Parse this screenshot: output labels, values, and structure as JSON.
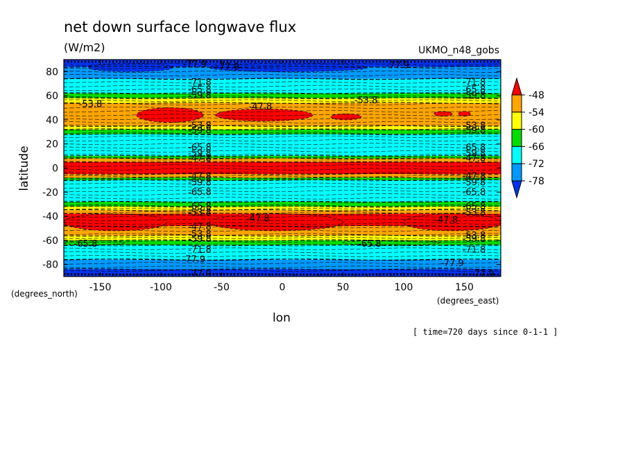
{
  "chart_data": {
    "type": "heatmap",
    "title": "net down surface longwave flux",
    "units": "(W/m2)",
    "model": "UKMO_n48_gobs",
    "xlabel": "lon",
    "ylabel": "latitude",
    "x_units": "(degrees_east)",
    "y_units": "(degrees_north)",
    "time_note": "[ time=720 days since 0-1-1 ]",
    "xlim": [
      -180,
      180
    ],
    "ylim": [
      -90,
      90
    ],
    "x_ticks": [
      -150,
      -100,
      -50,
      0,
      50,
      100,
      150
    ],
    "y_ticks": [
      -80,
      -60,
      -40,
      -20,
      0,
      20,
      40,
      60,
      80
    ],
    "colorbar": {
      "labels": [
        "-48",
        "-54",
        "-60",
        "-66",
        "-72",
        "-78"
      ],
      "levels": [
        -48,
        -54,
        -60,
        -66,
        -72,
        -78
      ],
      "bins": [
        {
          "color": "#ff0000"
        },
        {
          "color": "#ffa500"
        },
        {
          "color": "#ffff00"
        },
        {
          "color": "#00dd00"
        },
        {
          "color": "#00ffff"
        },
        {
          "color": "#0099ff"
        },
        {
          "color": "#0033ee"
        }
      ]
    },
    "latitude_bands": [
      {
        "lat": [
          84,
          90
        ],
        "color": "#0033ee"
      },
      {
        "lat": [
          74,
          84
        ],
        "color": "#0099ff"
      },
      {
        "lat": [
          62,
          74
        ],
        "color": "#00ffff"
      },
      {
        "lat": [
          58,
          62
        ],
        "color": "#00dd00"
      },
      {
        "lat": [
          54,
          58
        ],
        "color": "#ffff00"
      },
      {
        "lat": [
          35,
          54
        ],
        "color": "#ffa500"
      },
      {
        "lat": [
          32,
          35
        ],
        "color": "#ffff00"
      },
      {
        "lat": [
          28,
          32
        ],
        "color": "#00dd00"
      },
      {
        "lat": [
          10,
          28
        ],
        "color": "#00ffff"
      },
      {
        "lat": [
          8,
          10
        ],
        "color": "#00dd00"
      },
      {
        "lat": [
          5,
          8
        ],
        "color": "#ffa500"
      },
      {
        "lat": [
          -5,
          5
        ],
        "color": "#ff0000"
      },
      {
        "lat": [
          -8,
          -5
        ],
        "color": "#ffa500"
      },
      {
        "lat": [
          -10,
          -8
        ],
        "color": "#00dd00"
      },
      {
        "lat": [
          -28,
          -10
        ],
        "color": "#00ffff"
      },
      {
        "lat": [
          -32,
          -28
        ],
        "color": "#00dd00"
      },
      {
        "lat": [
          -35,
          -32
        ],
        "color": "#ffff00"
      },
      {
        "lat": [
          -38,
          -35
        ],
        "color": "#ffa500"
      },
      {
        "lat": [
          -48,
          -38
        ],
        "color": "#ff0000"
      },
      {
        "lat": [
          -56,
          -48
        ],
        "color": "#ffa500"
      },
      {
        "lat": [
          -60,
          -56
        ],
        "color": "#ffff00"
      },
      {
        "lat": [
          -64,
          -60
        ],
        "color": "#00dd00"
      },
      {
        "lat": [
          -76,
          -64
        ],
        "color": "#00ffff"
      },
      {
        "lat": [
          -84,
          -76
        ],
        "color": "#0099ff"
      },
      {
        "lat": [
          -90,
          -84
        ],
        "color": "#0033ee"
      }
    ],
    "blobs": [
      {
        "lon": [
          -120,
          -65
        ],
        "lat": [
          38,
          50
        ],
        "color": "#ff0000"
      },
      {
        "lon": [
          -55,
          25
        ],
        "lat": [
          39,
          49
        ],
        "color": "#ff0000"
      },
      {
        "lon": [
          40,
          65
        ],
        "lat": [
          40,
          45
        ],
        "color": "#ff0000"
      },
      {
        "lon": [
          125,
          140
        ],
        "lat": [
          43,
          47
        ],
        "color": "#ff0000"
      },
      {
        "lon": [
          145,
          155
        ],
        "lat": [
          43,
          47
        ],
        "color": "#ff0000"
      },
      {
        "lon": [
          -60,
          50
        ],
        "lat": [
          -38,
          -52
        ],
        "color": "#ff0000"
      },
      {
        "lon": [
          100,
          180
        ],
        "lat": [
          -38,
          -52
        ],
        "color": "#ff0000"
      },
      {
        "lon": [
          -180,
          -95
        ],
        "lat": [
          -38,
          -52
        ],
        "color": "#ff0000"
      },
      {
        "lon": [
          -160,
          -90
        ],
        "lat": [
          80,
          87
        ],
        "color": "#0033ee"
      },
      {
        "lon": [
          -60,
          70
        ],
        "lat": [
          80,
          87
        ],
        "color": "#0033ee"
      },
      {
        "lon": [
          -180,
          -130
        ],
        "lat": [
          -64,
          -60
        ],
        "color": "#00dd00"
      },
      {
        "lon": [
          50,
          130
        ],
        "lat": [
          -64,
          -60
        ],
        "color": "#00dd00"
      }
    ],
    "contour_labels": [
      {
        "text": "-77.9",
        "lon": -72,
        "lat": 86
      },
      {
        "text": "-77.9",
        "lon": -45,
        "lat": 84
      },
      {
        "text": "-77.9",
        "lon": 95,
        "lat": 85
      },
      {
        "text": "-71.8",
        "lon": -68,
        "lat": 71
      },
      {
        "text": "-71.8",
        "lon": 158,
        "lat": 71
      },
      {
        "text": "-65.8",
        "lon": -68,
        "lat": 65
      },
      {
        "text": "-65.8",
        "lon": 158,
        "lat": 65
      },
      {
        "text": "-59.8",
        "lon": -68,
        "lat": 60
      },
      {
        "text": "-59.8",
        "lon": 158,
        "lat": 60
      },
      {
        "text": "-53.8",
        "lon": -158,
        "lat": 53
      },
      {
        "text": "-53.8",
        "lon": 69,
        "lat": 56
      },
      {
        "text": "-47.8",
        "lon": -18,
        "lat": 51
      },
      {
        "text": "-53.8",
        "lon": -68,
        "lat": 35
      },
      {
        "text": "-53.8",
        "lon": 158,
        "lat": 35
      },
      {
        "text": "-59.8",
        "lon": -68,
        "lat": 31
      },
      {
        "text": "-59.8",
        "lon": 158,
        "lat": 31
      },
      {
        "text": "-65.8",
        "lon": -68,
        "lat": 17
      },
      {
        "text": "-65.8",
        "lon": 158,
        "lat": 17
      },
      {
        "text": "-59.8",
        "lon": -68,
        "lat": 12
      },
      {
        "text": "-59.8",
        "lon": 158,
        "lat": 12
      },
      {
        "text": "-47.8",
        "lon": -68,
        "lat": 8
      },
      {
        "text": "-47.8",
        "lon": 158,
        "lat": 8
      },
      {
        "text": "-47.8",
        "lon": -68,
        "lat": -7
      },
      {
        "text": "-47.8",
        "lon": 158,
        "lat": -7
      },
      {
        "text": "-59.8",
        "lon": -68,
        "lat": -12
      },
      {
        "text": "-59.8",
        "lon": 158,
        "lat": -12
      },
      {
        "text": "-65.8",
        "lon": -68,
        "lat": -20
      },
      {
        "text": "-65.8",
        "lon": 158,
        "lat": -20
      },
      {
        "text": "-65.8",
        "lon": -68,
        "lat": -32
      },
      {
        "text": "-65.8",
        "lon": 158,
        "lat": -32
      },
      {
        "text": "-53.8",
        "lon": -68,
        "lat": -37
      },
      {
        "text": "-53.8",
        "lon": 158,
        "lat": -37
      },
      {
        "text": "-47.8",
        "lon": -20,
        "lat": -42
      },
      {
        "text": "-47.8",
        "lon": 135,
        "lat": -43
      },
      {
        "text": "-47.8",
        "lon": -68,
        "lat": -49
      },
      {
        "text": "-53.8",
        "lon": -68,
        "lat": -55
      },
      {
        "text": "-53.8",
        "lon": 158,
        "lat": -56
      },
      {
        "text": "-59.8",
        "lon": -68,
        "lat": -59
      },
      {
        "text": "-59.8",
        "lon": 158,
        "lat": -59
      },
      {
        "text": "-65.8",
        "lon": -162,
        "lat": -63
      },
      {
        "text": "-65.8",
        "lon": 72,
        "lat": -63
      },
      {
        "text": "-71.8",
        "lon": -68,
        "lat": -68
      },
      {
        "text": "-71.8",
        "lon": 158,
        "lat": -68
      },
      {
        "text": "-77.9",
        "lon": -73,
        "lat": -76
      },
      {
        "text": "-77.9",
        "lon": 140,
        "lat": -79
      },
      {
        "text": "-77.9",
        "lon": -68,
        "lat": -88
      },
      {
        "text": "-77.9",
        "lon": 165,
        "lat": -88
      }
    ]
  }
}
